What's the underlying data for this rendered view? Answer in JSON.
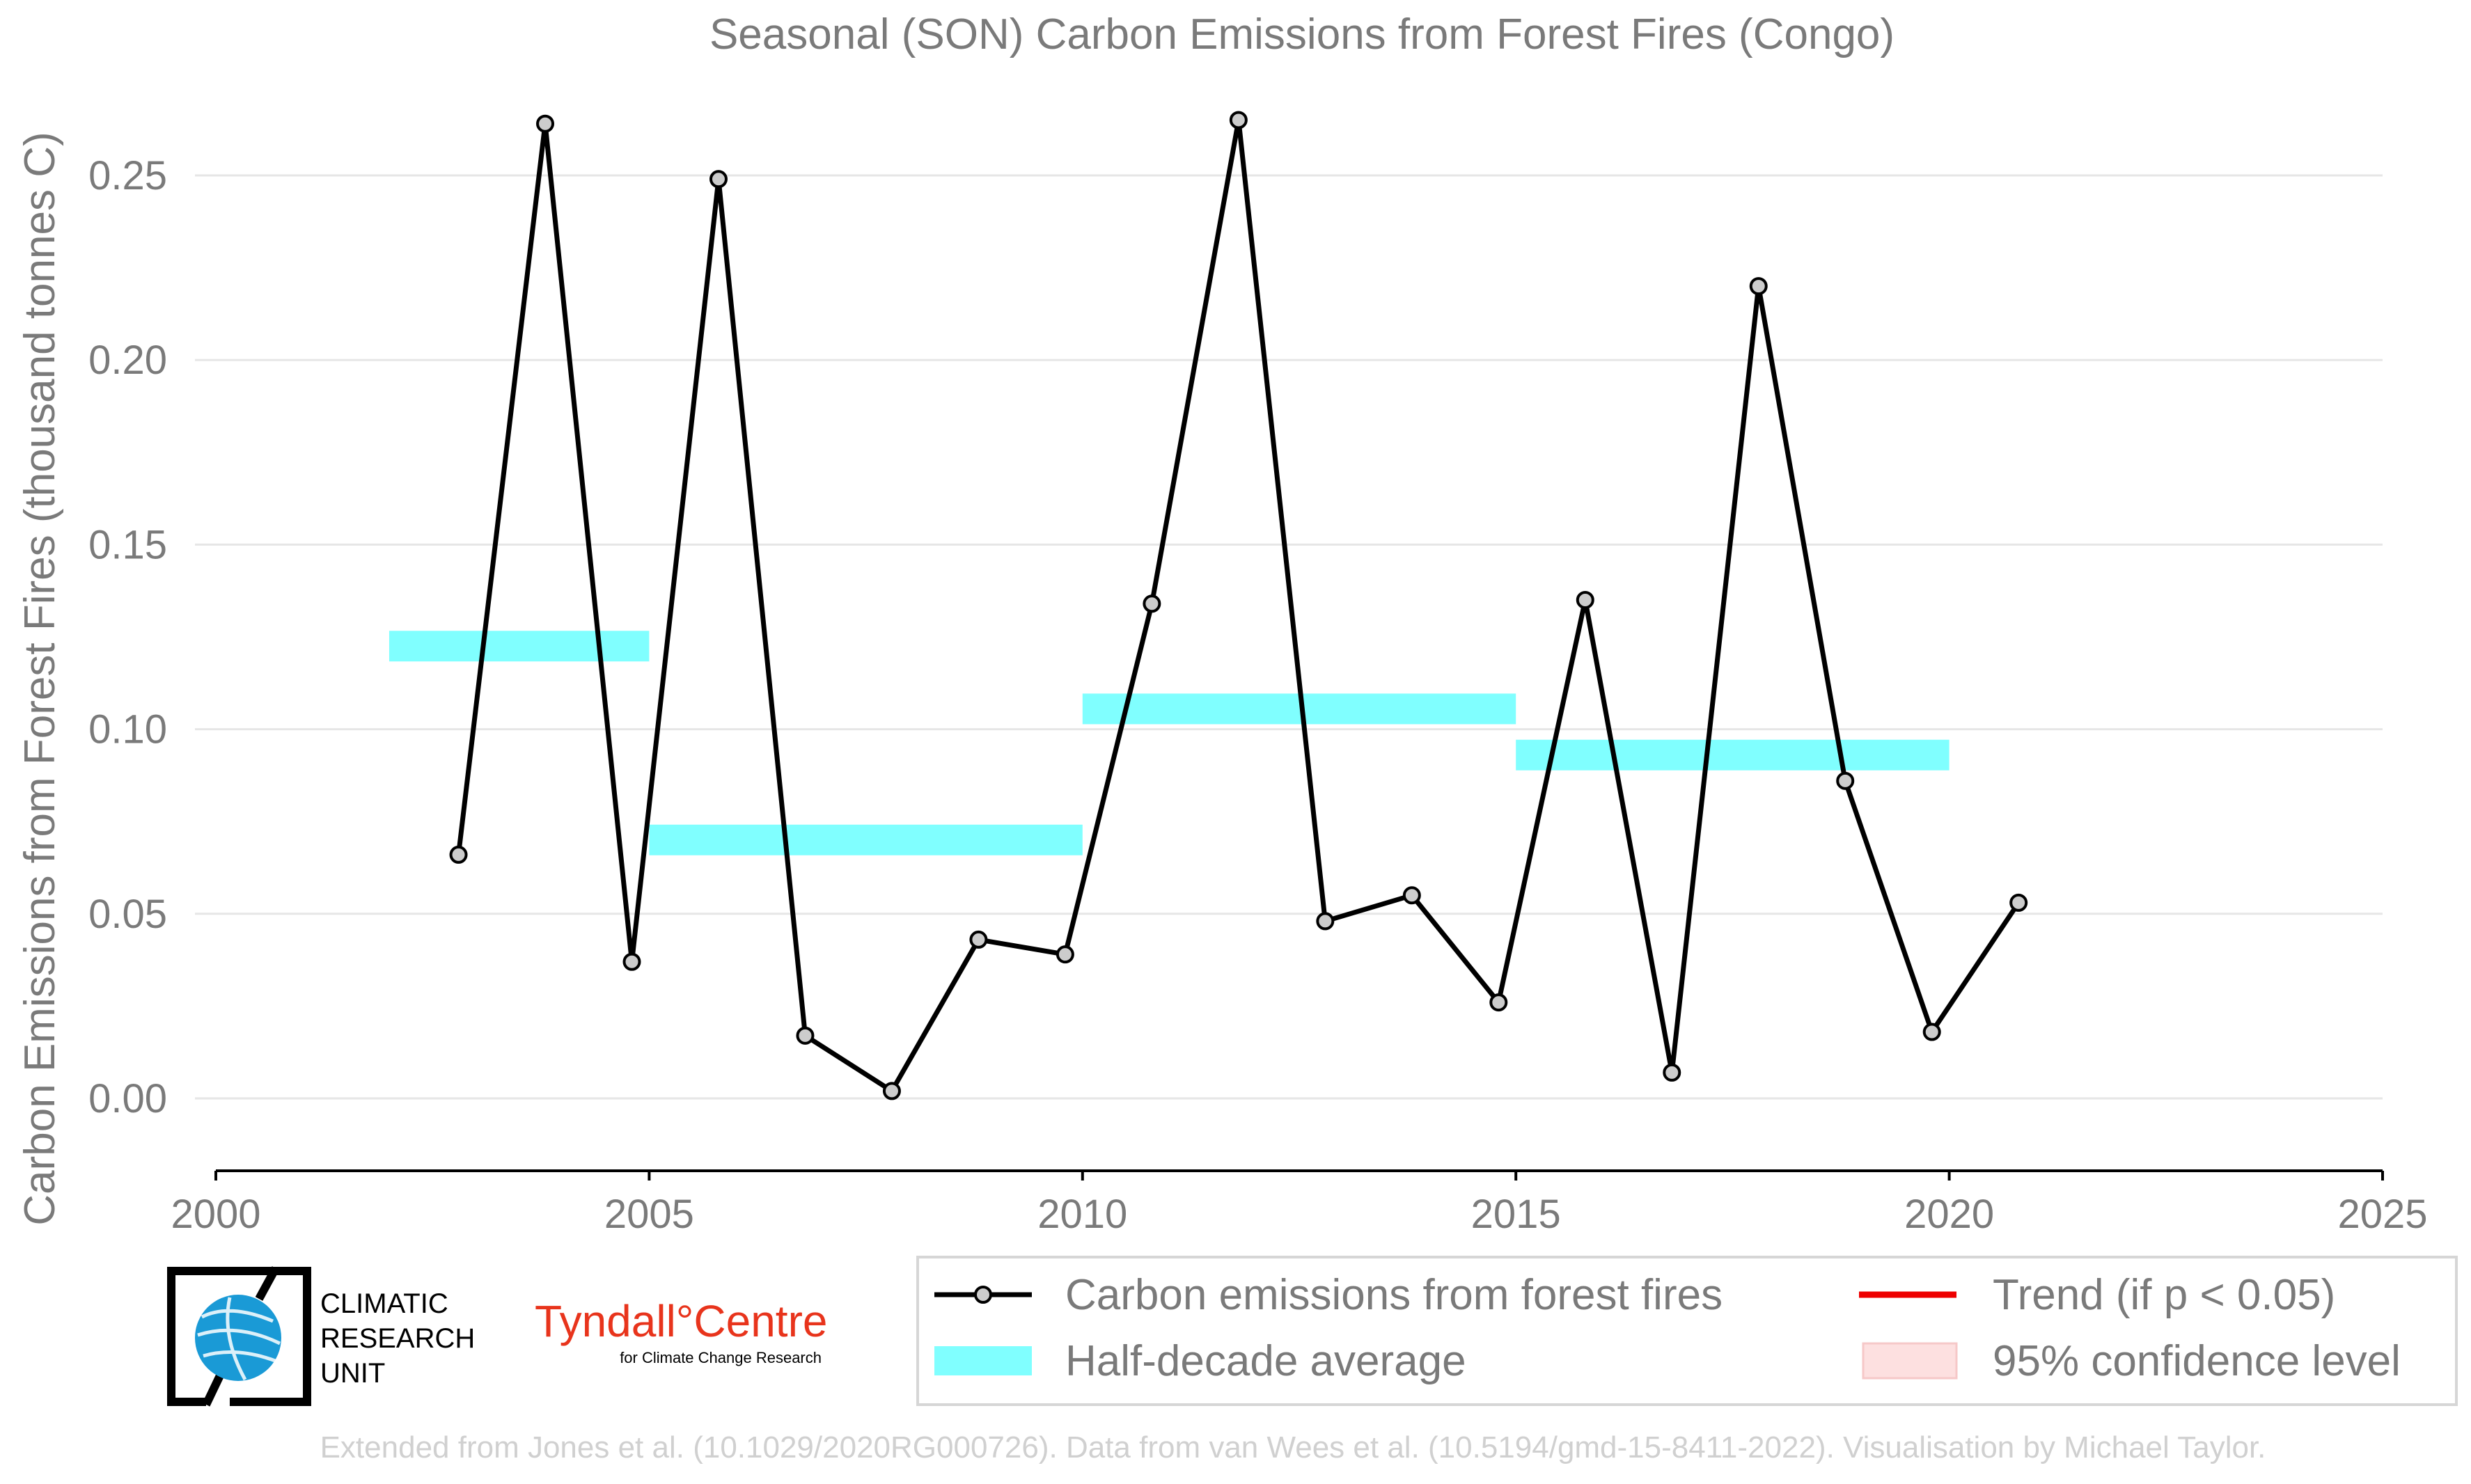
{
  "chart_data": {
    "type": "line",
    "title": "Seasonal (SON) Carbon Emissions from Forest Fires (Congo)",
    "xlabel": "",
    "ylabel": "Carbon Emissions from Forest Fires (thousand tonnes C)",
    "xlim": [
      2000,
      2025
    ],
    "ylim": [
      -0.018,
      0.265
    ],
    "x_ticks": [
      2000,
      2005,
      2010,
      2015,
      2020,
      2025
    ],
    "y_ticks": [
      0.0,
      0.05,
      0.1,
      0.15,
      0.2,
      0.25
    ],
    "y_tick_labels": [
      "0.00",
      "0.05",
      "0.10",
      "0.15",
      "0.20",
      "0.25"
    ],
    "grid": "horizontal",
    "series": [
      {
        "name": "Carbon emissions from forest fires",
        "color": "#000000",
        "x": [
          2002.8,
          2003.8,
          2004.8,
          2005.8,
          2006.8,
          2007.8,
          2008.8,
          2009.8,
          2010.8,
          2011.8,
          2012.8,
          2013.8,
          2014.8,
          2015.8,
          2016.8,
          2017.8,
          2018.8,
          2019.8,
          2020.8
        ],
        "y": [
          0.066,
          0.264,
          0.037,
          0.249,
          0.017,
          0.002,
          0.043,
          0.039,
          0.134,
          0.265,
          0.048,
          0.055,
          0.026,
          0.135,
          0.007,
          0.22,
          0.086,
          0.018,
          0.053
        ]
      }
    ],
    "half_decade_average": {
      "name": "Half-decade average",
      "color": "#80ffff",
      "segments": [
        {
          "x0": 2002,
          "x1": 2005,
          "y": 0.1225
        },
        {
          "x0": 2005,
          "x1": 2010,
          "y": 0.07
        },
        {
          "x0": 2010,
          "x1": 2015,
          "y": 0.1055
        },
        {
          "x0": 2015,
          "x1": 2020,
          "y": 0.093
        }
      ]
    },
    "legend": {
      "placement": "bottom-right",
      "items": [
        {
          "label": "Carbon emissions from forest fires",
          "kind": "line-marker",
          "color": "#000000"
        },
        {
          "label": "Trend (if p < 0.05)",
          "kind": "line",
          "color": "#ee0000"
        },
        {
          "label": "Half-decade average",
          "kind": "band",
          "color": "#80ffff"
        },
        {
          "label": "95% confidence level",
          "kind": "patch",
          "color": "#fde0e0"
        }
      ]
    }
  },
  "logos": {
    "cru_lines": [
      "CLIMATIC",
      "RESEARCH",
      "UNIT"
    ],
    "tyndall_name": "Tyndall°Centre",
    "tyndall_sub": "for Climate Change Research"
  },
  "credit": "Extended from Jones et al. (10.1029/2020RG000726). Data from van Wees et al. (10.5194/gmd-15-8411-2022). Visualisation by Michael Taylor.",
  "colors": {
    "text_gray": "#7a7a7a",
    "grid": "#e6e6e6",
    "marker_fill": "#cccccc",
    "tyndall_red": "#e8341c",
    "cru_blue": "#1a9ad6"
  }
}
